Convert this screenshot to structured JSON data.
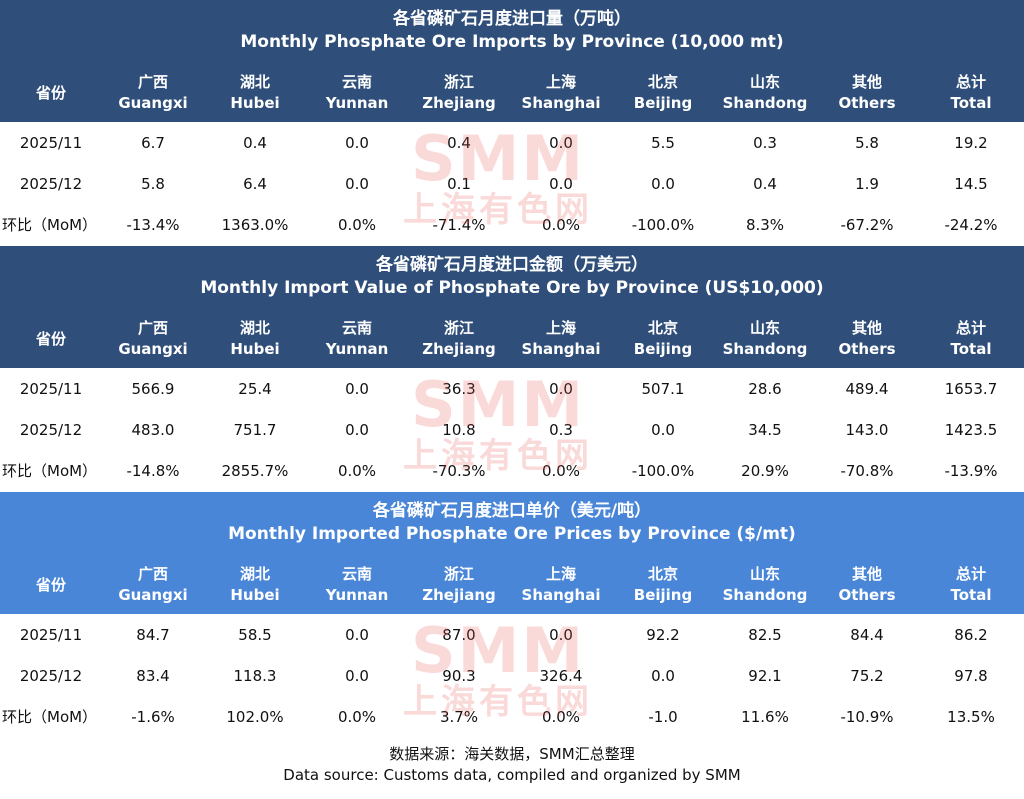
{
  "columns": [
    {
      "cn": "省份",
      "en": ""
    },
    {
      "cn": "广西",
      "en": "Guangxi"
    },
    {
      "cn": "湖北",
      "en": "Hubei"
    },
    {
      "cn": "云南",
      "en": "Yunnan"
    },
    {
      "cn": "浙江",
      "en": "Zhejiang"
    },
    {
      "cn": "上海",
      "en": "Shanghai"
    },
    {
      "cn": "北京",
      "en": "Beijing"
    },
    {
      "cn": "山东",
      "en": "Shandong"
    },
    {
      "cn": "其他",
      "en": "Others"
    },
    {
      "cn": "总计",
      "en": "Total"
    }
  ],
  "watermark": {
    "logo": "SMM",
    "text": "上海有色网"
  },
  "colors": {
    "dark_header": "#2f4f7a",
    "light_header": "#4a86d8",
    "watermark": "#e85050"
  },
  "footer": {
    "cn": "数据来源：海关数据，SMM汇总整理",
    "en": "Data source: Customs data, compiled and organized by SMM"
  },
  "chart_data": [
    {
      "type": "table",
      "title_cn": "各省磷矿石月度进口量（万吨）",
      "title_en": "Monthly Phosphate Ore Imports by Province (10,000 mt)",
      "rows": [
        {
          "label": "2025/11",
          "values": [
            "6.7",
            "0.4",
            "0.0",
            "0.4",
            "0.0",
            "5.5",
            "0.3",
            "5.8",
            "19.2"
          ]
        },
        {
          "label": "2025/12",
          "values": [
            "5.8",
            "6.4",
            "0.0",
            "0.1",
            "0.0",
            "0.0",
            "0.4",
            "1.9",
            "14.5"
          ]
        },
        {
          "label": "环比（MoM）",
          "values": [
            "-13.4%",
            "1363.0%",
            "0.0%",
            "-71.4%",
            "0.0%",
            "-100.0%",
            "8.3%",
            "-67.2%",
            "-24.2%"
          ]
        }
      ]
    },
    {
      "type": "table",
      "title_cn": "各省磷矿石月度进口金额（万美元）",
      "title_en": "Monthly Import Value of Phosphate Ore by Province (US$10,000)",
      "rows": [
        {
          "label": "2025/11",
          "values": [
            "566.9",
            "25.4",
            "0.0",
            "36.3",
            "0.0",
            "507.1",
            "28.6",
            "489.4",
            "1653.7"
          ]
        },
        {
          "label": "2025/12",
          "values": [
            "483.0",
            "751.7",
            "0.0",
            "10.8",
            "0.3",
            "0.0",
            "34.5",
            "143.0",
            "1423.5"
          ]
        },
        {
          "label": "环比（MoM）",
          "values": [
            "-14.8%",
            "2855.7%",
            "0.0%",
            "-70.3%",
            "0.0%",
            "-100.0%",
            "20.9%",
            "-70.8%",
            "-13.9%"
          ]
        }
      ]
    },
    {
      "type": "table",
      "title_cn": "各省磷矿石月度进口单价（美元/吨）",
      "title_en": "Monthly Imported Phosphate Ore Prices by Province ($/mt)",
      "rows": [
        {
          "label": "2025/11",
          "values": [
            "84.7",
            "58.5",
            "0.0",
            "87.0",
            "0.0",
            "92.2",
            "82.5",
            "84.4",
            "86.2"
          ]
        },
        {
          "label": "2025/12",
          "values": [
            "83.4",
            "118.3",
            "0.0",
            "90.3",
            "326.4",
            "0.0",
            "92.1",
            "75.2",
            "97.8"
          ]
        },
        {
          "label": "环比（MoM）",
          "values": [
            "-1.6%",
            "102.0%",
            "0.0%",
            "3.7%",
            "0.0%",
            "-1.0",
            "11.6%",
            "-10.9%",
            "13.5%"
          ]
        }
      ]
    }
  ]
}
